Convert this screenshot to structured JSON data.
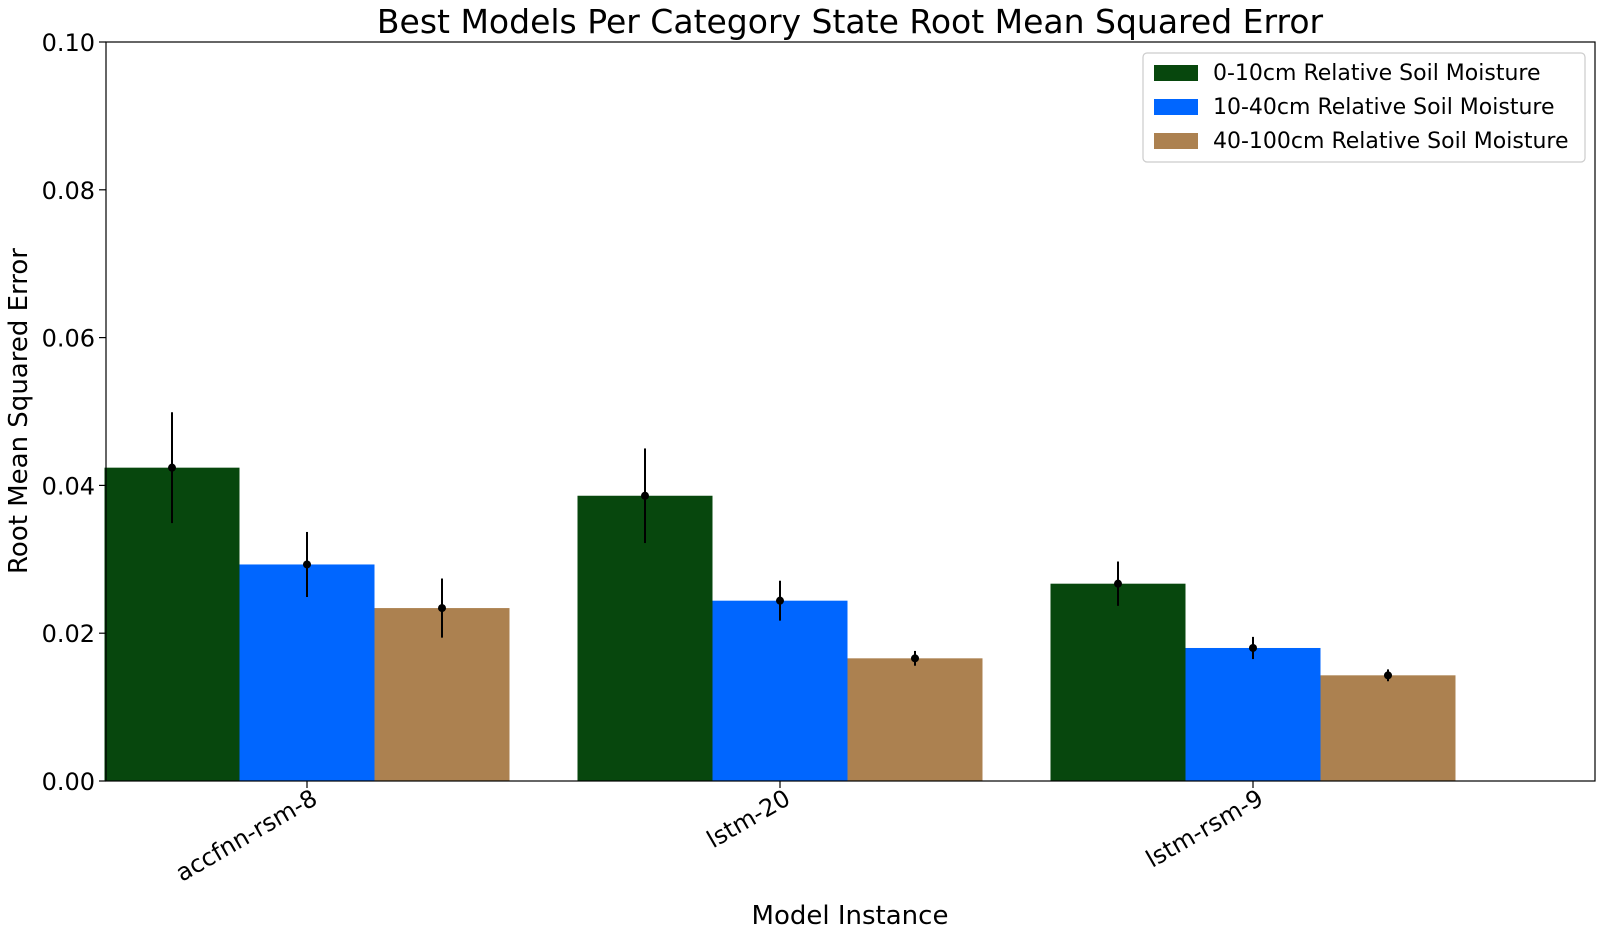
{
  "chart_data": {
    "type": "bar",
    "title": "Best Models Per Category State Root Mean Squared Error",
    "xlabel": "Model Instance",
    "ylabel": "Root Mean Squared Error",
    "ylim": [
      0,
      0.1
    ],
    "yticks": [
      "0.00",
      "0.02",
      "0.04",
      "0.06",
      "0.08",
      "0.10"
    ],
    "categories": [
      "accfnn-rsm-8",
      "lstm-20",
      "lstm-rsm-9"
    ],
    "series": [
      {
        "name": "0-10cm Relative Soil Moisture",
        "color": "#07470d",
        "values": [
          0.0424,
          0.0386,
          0.0267
        ],
        "err": [
          0.0075,
          0.0064,
          0.003
        ]
      },
      {
        "name": "10-40cm Relative Soil Moisture",
        "color": "#0066ff",
        "values": [
          0.0293,
          0.0244,
          0.018
        ],
        "err": [
          0.0044,
          0.0027,
          0.0015
        ]
      },
      {
        "name": "40-100cm Relative Soil Moisture",
        "color": "#ac8150",
        "values": [
          0.0234,
          0.0166,
          0.0143
        ],
        "err": [
          0.004,
          0.001,
          0.0008
        ]
      }
    ],
    "legend_position": "top-right",
    "grid": false,
    "error_bars": true
  }
}
